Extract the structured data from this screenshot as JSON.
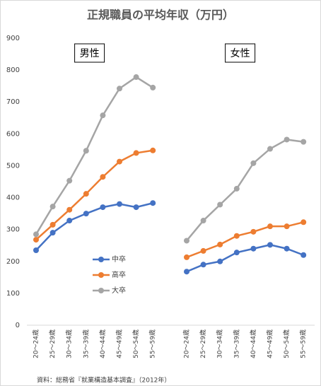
{
  "chart_data": {
    "type": "line",
    "title": "正規職員の平均年収（万円）",
    "panels": [
      "男性",
      "女性"
    ],
    "categories": [
      "20～24歳",
      "25～29歳",
      "30～34歳",
      "35～39歳",
      "40～44歳",
      "45～49歳",
      "50～54歳",
      "55～59歳"
    ],
    "series": [
      {
        "name": "中卒",
        "color": "#4472c4",
        "values": [
          [
            235,
            290,
            328,
            350,
            370,
            380,
            370,
            383
          ],
          [
            168,
            190,
            200,
            228,
            240,
            252,
            240,
            220
          ]
        ]
      },
      {
        "name": "高卒",
        "color": "#ed7d31",
        "values": [
          [
            268,
            315,
            362,
            412,
            465,
            513,
            540,
            548
          ],
          [
            213,
            233,
            253,
            280,
            293,
            310,
            310,
            323
          ]
        ]
      },
      {
        "name": "大卒",
        "color": "#a5a5a5",
        "values": [
          [
            285,
            372,
            453,
            547,
            658,
            742,
            778,
            745
          ],
          [
            265,
            328,
            378,
            428,
            508,
            553,
            582,
            575
          ]
        ]
      }
    ],
    "ylim": [
      0,
      900
    ],
    "yticks": [
      0,
      100,
      200,
      300,
      400,
      500,
      600,
      700,
      800,
      900
    ],
    "source": "資料：総務省『就業構造基本調査』（2012年）"
  }
}
